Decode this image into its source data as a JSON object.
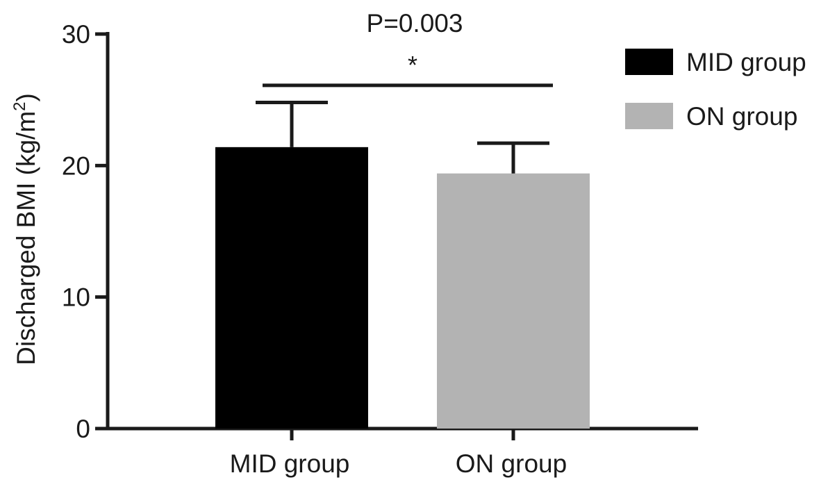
{
  "chart_data": {
    "type": "bar",
    "title": "",
    "xlabel": "",
    "ylabel": {
      "main": "Discharged BMI (kg/m",
      "sup": "2",
      "close": ")"
    },
    "ylim": [
      0,
      30
    ],
    "yticks": [
      0,
      10,
      20,
      30
    ],
    "grid": false,
    "legend_position": "top-right",
    "categories": [
      "MID group",
      "ON group"
    ],
    "values": [
      21.4,
      19.4
    ],
    "errors": [
      3.4,
      2.3
    ],
    "colors": [
      "#000000",
      "#b3b3b3"
    ],
    "legend": [
      {
        "label": "MID group",
        "color": "#000000"
      },
      {
        "label": "ON group",
        "color": "#b3b3b3"
      }
    ],
    "significance": {
      "p_text": "P=0.003",
      "marker": "*",
      "bracket_value": 26.1
    }
  }
}
